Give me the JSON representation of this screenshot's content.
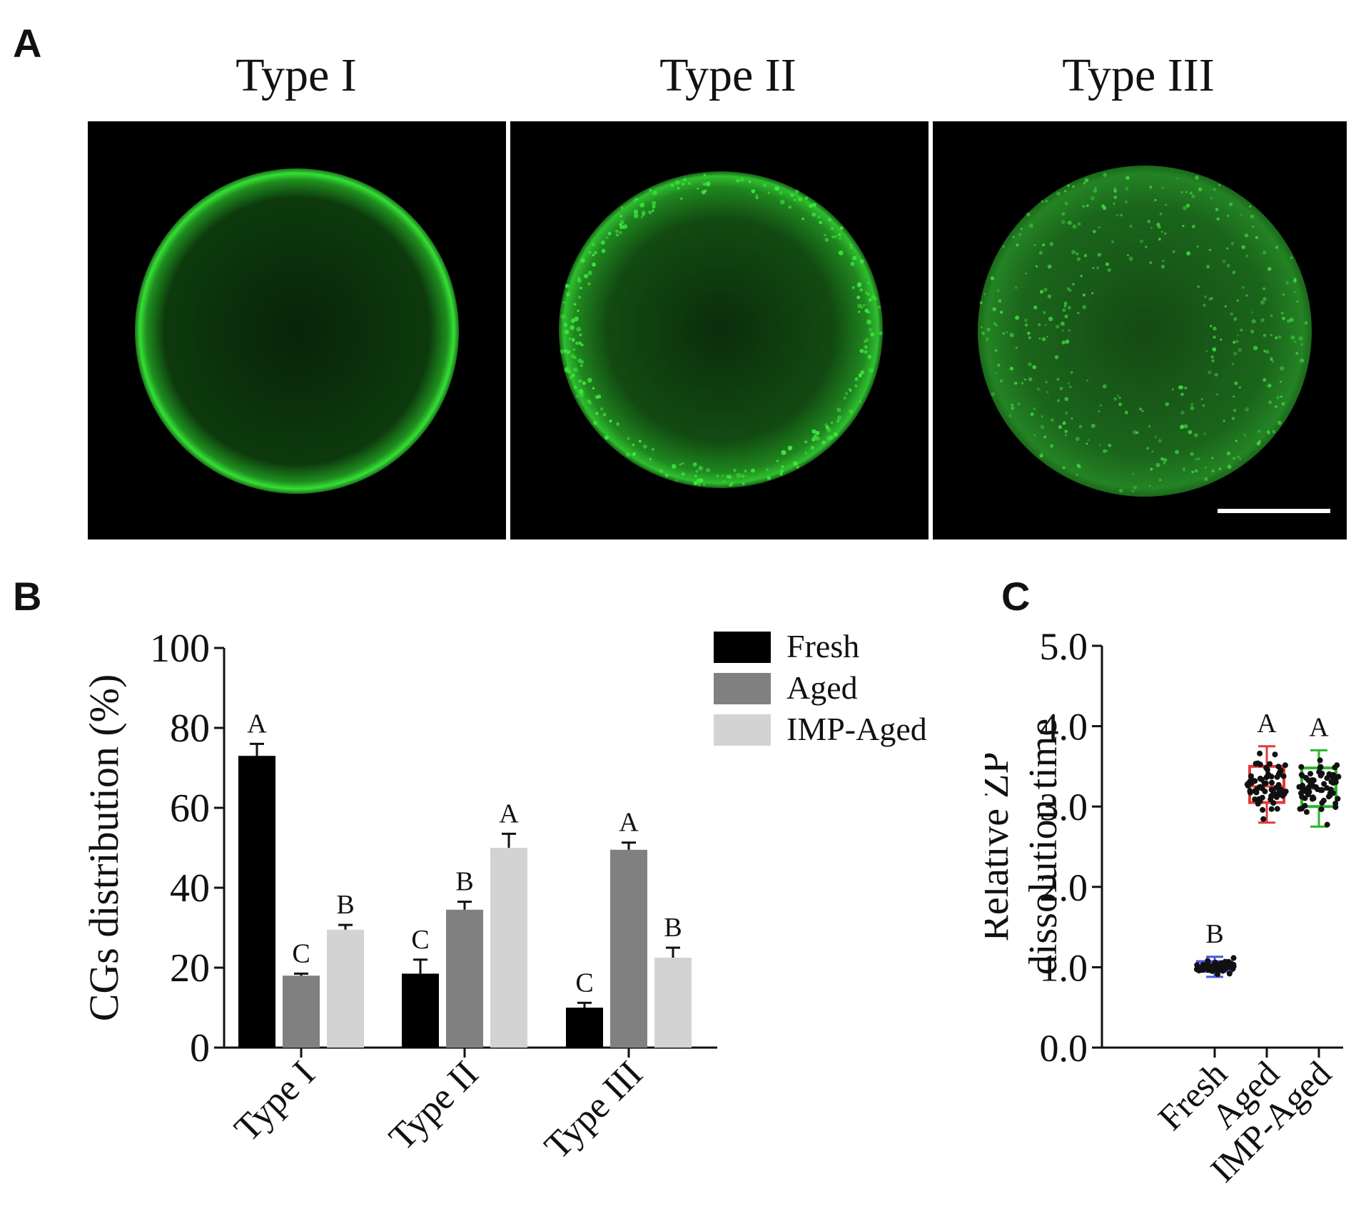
{
  "panels": {
    "a": {
      "letter": "A",
      "images": [
        {
          "title": "Type I",
          "pattern": "continuous-rim"
        },
        {
          "title": "Type II",
          "pattern": "punctate-cortex"
        },
        {
          "title": "Type III",
          "pattern": "diffuse-cytoplasm"
        }
      ],
      "fluorescence_color": "#2fdc2f",
      "background_color": "#000000"
    },
    "b": {
      "letter": "B"
    },
    "c": {
      "letter": "C"
    }
  },
  "chart_data": [
    {
      "id": "B",
      "type": "bar",
      "ylabel": "CGs distribution (%)",
      "ylim": [
        0,
        100
      ],
      "yticks": [
        0,
        20,
        40,
        60,
        80,
        100
      ],
      "categories": [
        "Type I",
        "Type II",
        "Type III"
      ],
      "legend_position": "top-right",
      "series": [
        {
          "name": "Fresh",
          "color": "#000000",
          "values": [
            73,
            18.5,
            10
          ],
          "errors": [
            3,
            3.5,
            1.2
          ],
          "letters": [
            "A",
            "C",
            "C"
          ]
        },
        {
          "name": "Aged",
          "color": "#808080",
          "values": [
            18,
            34.5,
            49.5
          ],
          "errors": [
            0.5,
            2,
            1.8
          ],
          "letters": [
            "C",
            "B",
            "A"
          ]
        },
        {
          "name": "IMP-Aged",
          "color": "#d3d3d3",
          "values": [
            29.5,
            50,
            22.5
          ],
          "errors": [
            1.2,
            3.5,
            2.5
          ],
          "letters": [
            "B",
            "A",
            "B"
          ]
        }
      ]
    },
    {
      "id": "C",
      "type": "scatter",
      "subtype": "box-and-points",
      "ylabel_lines": [
        "Relative ZP",
        "dissolution time"
      ],
      "ylim": [
        0,
        5
      ],
      "yticks": [
        "0.0",
        "1.0",
        "2.0",
        "3.0",
        "4.0",
        "5.0"
      ],
      "categories": [
        "Fresh",
        "Aged",
        "IMP-Aged"
      ],
      "groups": [
        {
          "name": "Fresh",
          "box_color": "#4b55e6",
          "q1": 0.95,
          "median": 1.0,
          "q3": 1.07,
          "min": 0.88,
          "max": 1.13,
          "letter": "B"
        },
        {
          "name": "Aged",
          "box_color": "#e23b3b",
          "q1": 3.05,
          "median": 3.25,
          "q3": 3.5,
          "min": 2.8,
          "max": 3.75,
          "letter": "A"
        },
        {
          "name": "IMP-Aged",
          "box_color": "#2bb52b",
          "q1": 3.0,
          "median": 3.22,
          "q3": 3.48,
          "min": 2.75,
          "max": 3.7,
          "letter": "A"
        }
      ]
    }
  ]
}
